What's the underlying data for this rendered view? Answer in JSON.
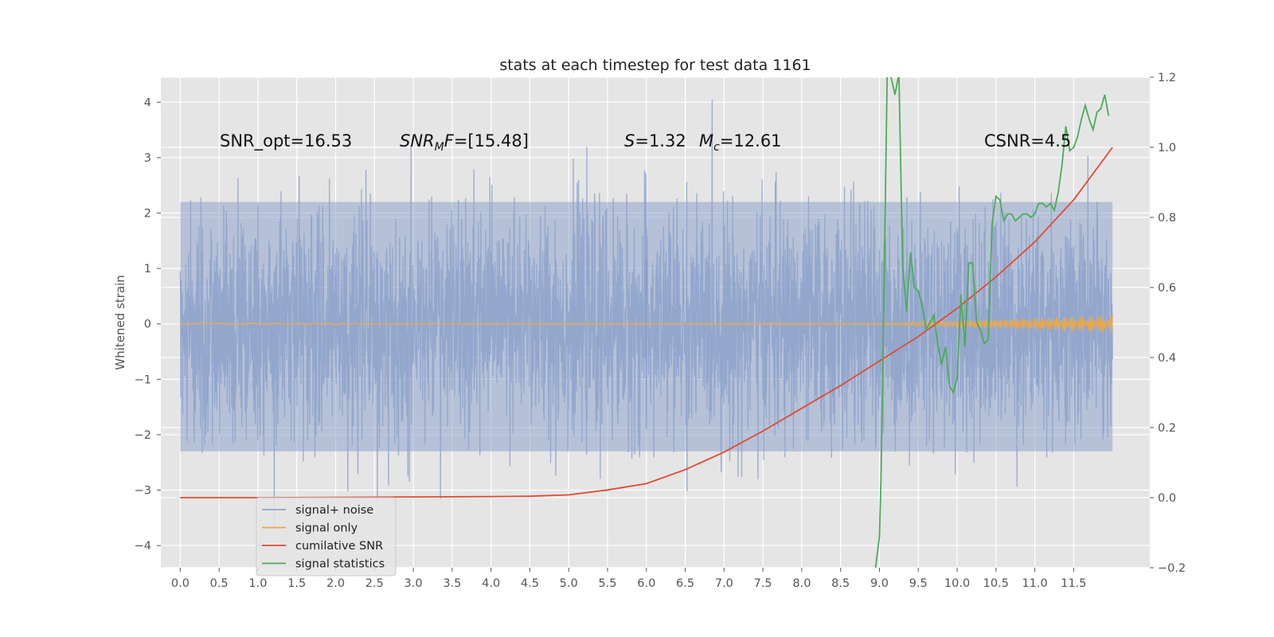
{
  "chart_data": {
    "type": "line",
    "title": "stats at each timestep for test data 1161",
    "ylabel": "Whitened strain",
    "xlabel": "",
    "y2label": "",
    "grid": true,
    "legend_placement": "lower-left",
    "xlim": [
      -0.25,
      12.48
    ],
    "ylim": [
      -4.4,
      4.45
    ],
    "y2lim": [
      -0.2,
      1.2
    ],
    "x_ticks": [
      "0.0",
      "0.5",
      "1.0",
      "1.5",
      "2.0",
      "2.5",
      "3.0",
      "3.5",
      "4.0",
      "4.5",
      "5.0",
      "5.5",
      "6.0",
      "6.5",
      "7.0",
      "7.5",
      "8.0",
      "8.5",
      "9.0",
      "9.5",
      "10.0",
      "10.5",
      "11.0",
      "11.5"
    ],
    "y_ticks": [
      "4",
      "3",
      "2",
      "1",
      "0",
      "−1",
      "−2",
      "−3",
      "−4"
    ],
    "y2_ticks": [
      "1.2",
      "1.0",
      "0.8",
      "0.6",
      "0.4",
      "0.2",
      "0.0",
      "−0.2"
    ],
    "annotations": [
      {
        "kind": "plain",
        "text": "SNR_opt=16.53"
      },
      {
        "kind": "mf",
        "base": "SNR",
        "sub": "M",
        "var": "F",
        "rest": "=[15.48]"
      },
      {
        "kind": "italic",
        "var": "S",
        "rest": "=1.32"
      },
      {
        "kind": "mc",
        "var": "M",
        "sub": "c",
        "rest": "=12.61"
      },
      {
        "kind": "plain",
        "text": "CSNR=4.5"
      }
    ],
    "series": [
      {
        "name": "signal+ noise",
        "color": "#8fa4cc",
        "axis": "left",
        "x_range": [
          0.0,
          12.0
        ],
        "envelope": {
          "typical_max": 2.2,
          "typical_min": -2.3,
          "peak_max": 4.05,
          "peak_min": -4.0,
          "marked_spike": {
            "x": 6.0,
            "y": 1.15
          }
        }
      },
      {
        "name": "signal only",
        "color": "#e9a94d",
        "axis": "left",
        "x_range": [
          0.0,
          12.0
        ],
        "envelope": {
          "start_x": 9.0,
          "end_amplitude": 0.15
        }
      },
      {
        "name": "cumilative SNR",
        "color": "#e24a33",
        "axis": "right",
        "x": [
          0.0,
          1.0,
          2.0,
          3.0,
          4.0,
          4.5,
          5.0,
          5.5,
          6.0,
          6.5,
          7.0,
          7.5,
          8.0,
          8.5,
          9.0,
          9.5,
          10.0,
          10.5,
          11.0,
          11.5,
          12.0
        ],
        "y": [
          0.0,
          0.0,
          0.001,
          0.002,
          0.003,
          0.004,
          0.008,
          0.022,
          0.04,
          0.08,
          0.13,
          0.19,
          0.255,
          0.32,
          0.39,
          0.46,
          0.54,
          0.63,
          0.73,
          0.85,
          1.0
        ]
      },
      {
        "name": "signal statistics",
        "color": "#4dab59",
        "axis": "right",
        "x": [
          8.95,
          9.0,
          9.02,
          9.06,
          9.1,
          9.15,
          9.2,
          9.25,
          9.3,
          9.35,
          9.4,
          9.45,
          9.5,
          9.55,
          9.6,
          9.65,
          9.7,
          9.75,
          9.8,
          9.85,
          9.9,
          9.95,
          10.0,
          10.05,
          10.1,
          10.15,
          10.2,
          10.25,
          10.3,
          10.35,
          10.4,
          10.45,
          10.5,
          10.55,
          10.6,
          10.65,
          10.7,
          10.75,
          10.8,
          10.85,
          10.9,
          10.95,
          11.0,
          11.05,
          11.1,
          11.15,
          11.2,
          11.25,
          11.3,
          11.35,
          11.4,
          11.45,
          11.5,
          11.55,
          11.6,
          11.65,
          11.7,
          11.75,
          11.8,
          11.85,
          11.9,
          11.95
        ],
        "y": [
          -0.2,
          -0.11,
          0.05,
          0.6,
          1.21,
          1.2,
          1.15,
          1.21,
          0.66,
          0.53,
          0.7,
          0.6,
          0.59,
          0.55,
          0.48,
          0.5,
          0.52,
          0.44,
          0.38,
          0.43,
          0.32,
          0.3,
          0.34,
          0.58,
          0.43,
          0.67,
          0.67,
          0.5,
          0.48,
          0.44,
          0.45,
          0.78,
          0.86,
          0.85,
          0.79,
          0.81,
          0.81,
          0.79,
          0.8,
          0.81,
          0.81,
          0.8,
          0.81,
          0.84,
          0.84,
          0.83,
          0.84,
          0.82,
          0.87,
          0.95,
          1.06,
          0.99,
          1.0,
          1.03,
          1.08,
          1.12,
          1.08,
          1.05,
          1.1,
          1.11,
          1.15,
          1.09
        ]
      }
    ]
  }
}
